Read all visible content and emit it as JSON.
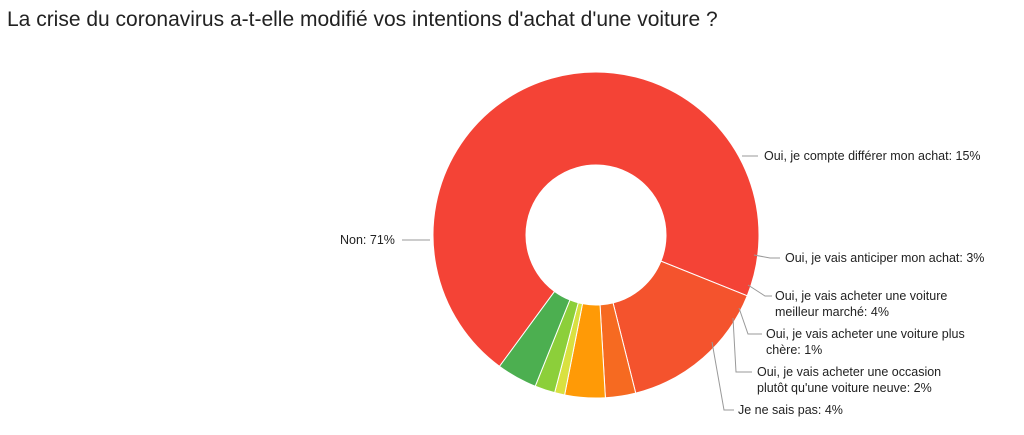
{
  "chart_data": {
    "type": "pie",
    "donut": true,
    "title": "La crise du coronavirus a-t-elle modifié vos intentions d'achat d'une voiture ?",
    "slices": [
      {
        "label": "Non: 71%",
        "value": 71,
        "color": "#f44336"
      },
      {
        "label": "Oui, je compte différer mon achat: 15%",
        "value": 15,
        "color": "#f4532d"
      },
      {
        "label": "Oui, je vais anticiper mon achat: 3%",
        "value": 3,
        "color": "#f66a21"
      },
      {
        "label": "Oui, je vais acheter une voiture meilleur marché: 4%",
        "value": 4,
        "color": "#ff9a06"
      },
      {
        "label": "Oui, je vais acheter une voiture plus chère: 1%",
        "value": 1,
        "color": "#d9e140"
      },
      {
        "label": "Oui, je vais acheter une occasion plutôt qu'une voiture neuve: 2%",
        "value": 2,
        "color": "#8ccf3a"
      },
      {
        "label": "Je ne sais pas: 4%",
        "value": 4,
        "color": "#4caf50"
      }
    ],
    "legend": "none"
  }
}
